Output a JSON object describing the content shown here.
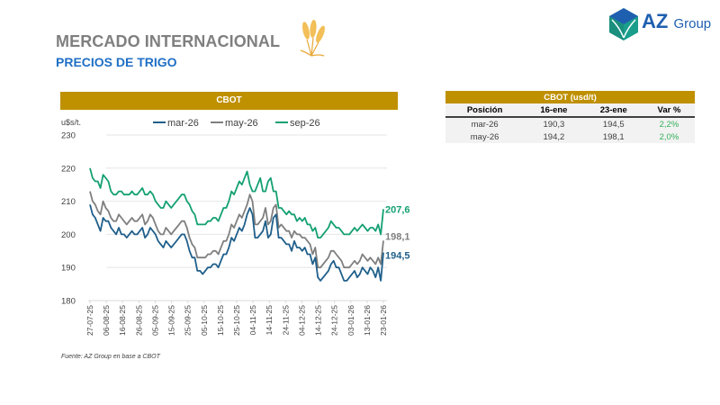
{
  "header": {
    "title": "MERCADO INTERNACIONAL",
    "subtitle": "PRECIOS DE TRIGO",
    "logo_text": "AZ",
    "logo_text_suffix": "Group"
  },
  "colors": {
    "gold": "#bf9000",
    "mar26": "#1f5f8b",
    "may26": "#7f7f7f",
    "sep26": "#14a073",
    "positive": "#33b05a",
    "title_blue": "#1f6fc5"
  },
  "table": {
    "title": "CBOT (usd/t)",
    "columns": [
      "Posición",
      "16-ene",
      "23-ene",
      "Var %"
    ],
    "rows": [
      [
        "mar-26",
        "190,3",
        "194,5",
        "2,2%"
      ],
      [
        "may-26",
        "194,2",
        "198,1",
        "2,0%"
      ]
    ]
  },
  "source": "Fuente: AZ Group en base a CBOT",
  "chart_data": {
    "type": "line",
    "title": "CBOT",
    "ylabel": "u$s/t.",
    "xlabel": "",
    "ylim": [
      180,
      230
    ],
    "yticks": [
      "180",
      "190",
      "200",
      "210",
      "220",
      "230"
    ],
    "xticks": [
      "27-07-25",
      "06-08-25",
      "16-08-25",
      "26-08-25",
      "05-09-25",
      "15-09-25",
      "25-09-25",
      "05-10-25",
      "15-10-25",
      "25-10-25",
      "04-11-25",
      "14-11-25",
      "24-11-25",
      "04-12-25",
      "14-12-25",
      "24-12-25",
      "03-01-26",
      "13-01-26",
      "23-01-26"
    ],
    "grid": true,
    "legend": "top",
    "end_labels": [
      "194,5",
      "198,1",
      "207,6"
    ],
    "series": [
      {
        "name": "mar-26",
        "values": [
          209,
          206,
          205,
          203,
          201,
          205,
          204,
          204,
          202,
          201,
          200,
          202,
          200,
          200,
          199,
          200,
          201,
          200,
          200,
          201,
          202,
          199,
          200,
          202,
          201,
          200,
          198,
          197,
          196,
          198,
          197,
          196,
          197,
          198,
          199,
          200,
          200,
          198,
          195,
          193,
          193,
          189,
          189,
          188,
          189,
          190,
          190,
          191,
          191,
          190,
          192,
          194,
          194,
          196,
          199,
          198,
          200,
          202,
          201,
          203,
          206,
          208,
          206,
          199,
          199,
          200,
          201,
          204,
          199,
          200,
          205,
          206,
          199,
          199,
          198,
          197,
          197,
          195,
          198,
          196,
          196,
          195,
          196,
          194,
          194,
          191,
          193,
          187,
          186,
          187,
          188,
          189,
          191,
          192,
          190,
          190,
          188,
          186,
          186,
          187,
          188,
          189,
          187,
          188,
          190,
          189,
          188,
          190,
          189,
          187,
          190,
          186,
          194.5
        ]
      },
      {
        "name": "may-26",
        "values": [
          213,
          210,
          209,
          207,
          206,
          210,
          208,
          207,
          205,
          204,
          204,
          206,
          205,
          204,
          203,
          204,
          205,
          204,
          204,
          205,
          206,
          203,
          204,
          206,
          205,
          203,
          201,
          200,
          200,
          202,
          201,
          200,
          201,
          202,
          203,
          204,
          204,
          202,
          199,
          197,
          196,
          193,
          193,
          193,
          193,
          194,
          194,
          195,
          195,
          194,
          196,
          198,
          198,
          200,
          203,
          202,
          204,
          206,
          205,
          207,
          209,
          212,
          210,
          203,
          203,
          204,
          205,
          208,
          203,
          204,
          208,
          209,
          202,
          203,
          202,
          201,
          201,
          199,
          201,
          200,
          200,
          199,
          199,
          198,
          197,
          194,
          196,
          190,
          190,
          191,
          192,
          193,
          195,
          195,
          194,
          193,
          192,
          190,
          190,
          190,
          191,
          192,
          191,
          192,
          194,
          193,
          192,
          193,
          192,
          191,
          193,
          191,
          198.1
        ]
      },
      {
        "name": "sep-26",
        "values": [
          220,
          217,
          216,
          216,
          214,
          218,
          217,
          216,
          213,
          212,
          212,
          213,
          213,
          212,
          212,
          212,
          213,
          212,
          212,
          213,
          214,
          212,
          212,
          213,
          212,
          210,
          209,
          208,
          208,
          210,
          209,
          208,
          209,
          210,
          211,
          212,
          212,
          210,
          209,
          207,
          206,
          203,
          203,
          203,
          203,
          204,
          204,
          205,
          205,
          204,
          206,
          208,
          208,
          210,
          213,
          212,
          214,
          216,
          215,
          217,
          219,
          215,
          213,
          213,
          215,
          217,
          213,
          213,
          216,
          217,
          213,
          213,
          208,
          208,
          207,
          206,
          207,
          206,
          206,
          204,
          205,
          204,
          205,
          203,
          203,
          201,
          202,
          199,
          199,
          200,
          201,
          202,
          204,
          203,
          202,
          202,
          201,
          200,
          200,
          200,
          201,
          202,
          201,
          202,
          203,
          202,
          201,
          202,
          202,
          201,
          203,
          200,
          207.6
        ]
      }
    ]
  }
}
